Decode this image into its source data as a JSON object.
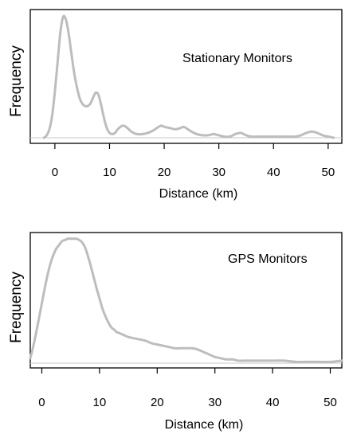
{
  "colors": {
    "curve": "#bdbdbd",
    "baseline": "#c8c8c8",
    "frame": "#000000",
    "text": "#000000"
  },
  "chart_data": [
    {
      "type": "area",
      "title": "",
      "annotation": "Stationary Monitors",
      "xlabel": "Distance (km)",
      "ylabel": "Frequency",
      "xlim": [
        -4.5,
        52.5
      ],
      "ylim": [
        0,
        1.05
      ],
      "xticks": [
        0,
        10,
        20,
        30,
        40,
        50
      ],
      "x_tick_labels": [
        "0",
        "10",
        "20",
        "30",
        "40",
        "50"
      ],
      "yticks_labeled": false,
      "grid": false,
      "series": [
        {
          "x": [
            -2,
            -1.5,
            -1,
            -0.5,
            0,
            0.5,
            1,
            1.5,
            2,
            2.5,
            3,
            3.5,
            4,
            4.5,
            5,
            5.5,
            6,
            6.5,
            7,
            7.5,
            8,
            8.5,
            9,
            9.5,
            10,
            10.5,
            11,
            11.5,
            12,
            12.5,
            13,
            13.5,
            14,
            15,
            16,
            17,
            18,
            19,
            19.5,
            20,
            21,
            22,
            23,
            23.5,
            24,
            25,
            26,
            27,
            28,
            29,
            30,
            31,
            32,
            33,
            34,
            35,
            36,
            38,
            40,
            42,
            44,
            45,
            46,
            47,
            48,
            49,
            50,
            51
          ],
          "y": [
            0.0,
            0.02,
            0.07,
            0.18,
            0.38,
            0.62,
            0.86,
            0.99,
            0.97,
            0.86,
            0.7,
            0.54,
            0.42,
            0.33,
            0.28,
            0.26,
            0.26,
            0.28,
            0.33,
            0.37,
            0.35,
            0.26,
            0.16,
            0.08,
            0.04,
            0.03,
            0.04,
            0.07,
            0.09,
            0.1,
            0.09,
            0.07,
            0.05,
            0.03,
            0.03,
            0.04,
            0.06,
            0.09,
            0.1,
            0.09,
            0.08,
            0.07,
            0.08,
            0.09,
            0.08,
            0.05,
            0.03,
            0.02,
            0.02,
            0.03,
            0.02,
            0.01,
            0.01,
            0.03,
            0.04,
            0.02,
            0.01,
            0.01,
            0.01,
            0.01,
            0.01,
            0.02,
            0.04,
            0.05,
            0.04,
            0.02,
            0.01,
            0.0
          ]
        }
      ]
    },
    {
      "type": "area",
      "title": "",
      "annotation": "GPS Monitors",
      "xlabel": "Distance (km)",
      "ylabel": "Frequency",
      "xlim": [
        -2,
        52
      ],
      "ylim": [
        0,
        1.05
      ],
      "xticks": [
        0,
        10,
        20,
        30,
        40,
        50
      ],
      "x_tick_labels": [
        "0",
        "10",
        "20",
        "30",
        "40",
        "50"
      ],
      "yticks_labeled": false,
      "grid": false,
      "series": [
        {
          "x": [
            -2,
            -1.5,
            -1,
            -0.5,
            0,
            0.5,
            1,
            1.5,
            2,
            2.5,
            3,
            3.5,
            4,
            4.5,
            5,
            5.5,
            6,
            6.5,
            7,
            7.5,
            8,
            8.5,
            9,
            9.5,
            10,
            10.5,
            11,
            11.5,
            12,
            12.5,
            13,
            13.5,
            14,
            15,
            16,
            17,
            18,
            19,
            20,
            21,
            22,
            23,
            24,
            25,
            26,
            27,
            28,
            29,
            30,
            31,
            32,
            33,
            34,
            35,
            36,
            38,
            40,
            42,
            44,
            46,
            48,
            50,
            52
          ],
          "y": [
            0.04,
            0.13,
            0.24,
            0.36,
            0.48,
            0.6,
            0.71,
            0.8,
            0.87,
            0.92,
            0.95,
            0.98,
            0.99,
            1.0,
            1.0,
            1.0,
            1.0,
            0.99,
            0.97,
            0.93,
            0.86,
            0.78,
            0.69,
            0.6,
            0.52,
            0.44,
            0.38,
            0.33,
            0.29,
            0.27,
            0.25,
            0.24,
            0.23,
            0.21,
            0.2,
            0.19,
            0.18,
            0.16,
            0.15,
            0.14,
            0.13,
            0.12,
            0.12,
            0.12,
            0.12,
            0.11,
            0.09,
            0.07,
            0.05,
            0.04,
            0.03,
            0.03,
            0.02,
            0.02,
            0.02,
            0.02,
            0.02,
            0.02,
            0.01,
            0.01,
            0.01,
            0.01,
            0.02
          ]
        }
      ]
    }
  ]
}
